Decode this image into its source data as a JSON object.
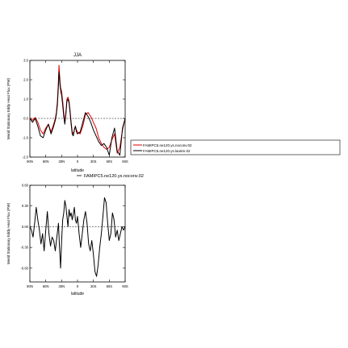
{
  "chart_data": [
    {
      "type": "line",
      "title": "JJA",
      "xlabel": "latitude",
      "ylabel": "Merid Stationary Eddy Heat Flux (PW)",
      "xlim": [
        90,
        -90
      ],
      "ylim": [
        -2.0,
        3.0
      ],
      "x_tick_labels": [
        "90N",
        "60N",
        "30N",
        "0",
        "30S",
        "60S",
        "90S"
      ],
      "y_tick_labels": [
        "3.0",
        "2.0",
        "1.0",
        "0.0",
        "-1.0",
        "-2.0"
      ],
      "legend_position": "right",
      "series": [
        {
          "name": "FAMIPC5.ne120.ys.noconv.02",
          "color": "#e00000",
          "x": [
            90,
            85,
            80,
            75,
            70,
            65,
            60,
            55,
            50,
            45,
            42,
            40,
            38,
            36,
            35,
            34,
            33,
            32,
            31,
            30,
            28,
            26,
            24,
            22,
            20,
            18,
            16,
            14,
            12,
            10,
            8,
            6,
            4,
            2,
            0,
            -5,
            -10,
            -15,
            -20,
            -25,
            -30,
            -35,
            -40,
            -45,
            -50,
            -55,
            -60,
            -65,
            -70,
            -75,
            -80,
            -85,
            -90
          ],
          "y": [
            0.0,
            -0.1,
            0.05,
            -0.2,
            -0.6,
            -0.8,
            -0.5,
            -0.3,
            -0.7,
            -0.3,
            0.0,
            0.3,
            0.9,
            2.0,
            2.75,
            2.3,
            1.9,
            1.6,
            1.5,
            1.4,
            0.9,
            0.3,
            -0.2,
            0.3,
            1.0,
            1.1,
            0.9,
            0.4,
            -0.2,
            -0.7,
            -0.8,
            -0.6,
            -0.4,
            -0.6,
            -0.7,
            -0.8,
            -0.4,
            0.2,
            0.3,
            0.1,
            -0.2,
            -0.5,
            -1.0,
            -1.3,
            -1.5,
            -1.6,
            -1.5,
            -1.1,
            -0.8,
            -1.8,
            -1.5,
            -0.6,
            0.0
          ]
        },
        {
          "name": "FAMIPC5.ne120.ys.lau5m.02",
          "color": "#000000",
          "x": [
            90,
            85,
            80,
            75,
            70,
            65,
            60,
            55,
            50,
            45,
            42,
            40,
            38,
            36,
            35,
            34,
            33,
            32,
            31,
            30,
            28,
            26,
            24,
            22,
            20,
            18,
            16,
            14,
            12,
            10,
            8,
            6,
            4,
            2,
            0,
            -5,
            -10,
            -15,
            -20,
            -25,
            -30,
            -35,
            -40,
            -45,
            -50,
            -55,
            -60,
            -65,
            -70,
            -75,
            -80,
            -85,
            -90
          ],
          "y": [
            0.0,
            -0.2,
            0.0,
            -0.4,
            -0.9,
            -1.0,
            -0.6,
            -0.3,
            -0.8,
            -0.4,
            -0.1,
            0.2,
            0.7,
            1.7,
            2.4,
            2.1,
            1.7,
            1.5,
            1.3,
            1.2,
            0.7,
            0.1,
            -0.3,
            0.2,
            0.9,
            1.0,
            0.8,
            0.3,
            -0.3,
            -0.8,
            -0.9,
            -0.6,
            -0.4,
            -0.7,
            -0.8,
            -0.7,
            -0.2,
            0.3,
            0.1,
            -0.2,
            -0.6,
            -0.9,
            -1.2,
            -1.4,
            -1.3,
            -1.5,
            -1.9,
            -1.0,
            -0.5,
            -1.7,
            -1.9,
            -0.5,
            0.0
          ]
        }
      ]
    },
    {
      "type": "line",
      "title": "FAMIPC5.ne120.ys.noconv.02",
      "xlabel": "latitude",
      "ylabel": "Merid Stationary Eddy Heat Flux (PW)",
      "xlim": [
        90,
        -90
      ],
      "ylim": [
        -0.8,
        0.6
      ],
      "x_tick_labels": [
        "90N",
        "60N",
        "30N",
        "0",
        "30S",
        "60S",
        "90S"
      ],
      "y_tick_labels": [
        "0.60",
        "0.30",
        "0.00",
        "-0.30",
        "-0.60"
      ],
      "series": [
        {
          "color": "#000000",
          "x": [
            90,
            87,
            84,
            81,
            78,
            75,
            72,
            69,
            66,
            63,
            60,
            57,
            54,
            51,
            48,
            45,
            42,
            39,
            36,
            34,
            32,
            30,
            28,
            26,
            24,
            22,
            20,
            18,
            16,
            14,
            12,
            10,
            8,
            6,
            4,
            2,
            0,
            -3,
            -6,
            -9,
            -12,
            -15,
            -18,
            -21,
            -24,
            -27,
            -30,
            -33,
            -36,
            -39,
            -42,
            -45,
            -48,
            -51,
            -54,
            -57,
            -60,
            -63,
            -66,
            -69,
            -72,
            -75,
            -78,
            -81,
            -84,
            -87,
            -90
          ],
          "y": [
            0.0,
            -0.05,
            -0.15,
            0.05,
            0.28,
            0.1,
            -0.05,
            -0.25,
            -0.1,
            -0.35,
            -0.05,
            0.22,
            -0.1,
            -0.28,
            -0.15,
            -0.2,
            -0.35,
            -0.15,
            0.05,
            -0.3,
            -0.6,
            -0.2,
            0.1,
            0.2,
            0.38,
            0.3,
            0.15,
            0.0,
            0.25,
            0.15,
            0.2,
            0.1,
            0.18,
            0.28,
            0.1,
            0.05,
            0.15,
            -0.1,
            -0.3,
            -0.1,
            0.1,
            0.22,
            0.05,
            -0.25,
            -0.35,
            -0.2,
            -0.4,
            -0.65,
            -0.72,
            -0.55,
            -0.3,
            -0.1,
            0.15,
            0.42,
            0.35,
            0.05,
            -0.2,
            -0.1,
            0.2,
            0.1,
            -0.15,
            -0.05,
            -0.2,
            -0.1,
            0.0,
            -0.05,
            0.0
          ]
        }
      ]
    }
  ]
}
